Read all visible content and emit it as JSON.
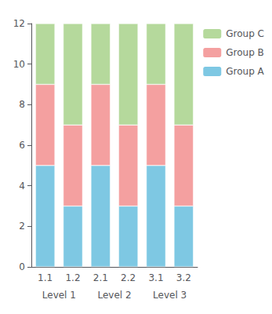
{
  "chart_data": {
    "type": "bar",
    "stacked": true,
    "categories": [
      "1.1",
      "1.2",
      "2.1",
      "2.2",
      "3.1",
      "3.2"
    ],
    "series": [
      {
        "name": "Group A",
        "color": "#7ec8e3",
        "values": [
          5,
          3,
          5,
          3,
          5,
          3
        ]
      },
      {
        "name": "Group B",
        "color": "#f4a0a0",
        "values": [
          4,
          4,
          4,
          4,
          4,
          4
        ]
      },
      {
        "name": "Group C",
        "color": "#b5d99c",
        "values": [
          3,
          5,
          3,
          5,
          3,
          5
        ]
      }
    ],
    "annotations": [
      {
        "text": "Level 1",
        "x": [
          "1.1",
          "1.2"
        ]
      },
      {
        "text": "Level 2",
        "x": [
          "2.1",
          "2.2"
        ]
      },
      {
        "text": "Level 3",
        "x": [
          "3.1",
          "3.2"
        ]
      }
    ],
    "ylim": [
      0,
      12
    ],
    "yticks": [
      0,
      2,
      4,
      6,
      8,
      10,
      12
    ],
    "grid": false,
    "legend": "right"
  }
}
